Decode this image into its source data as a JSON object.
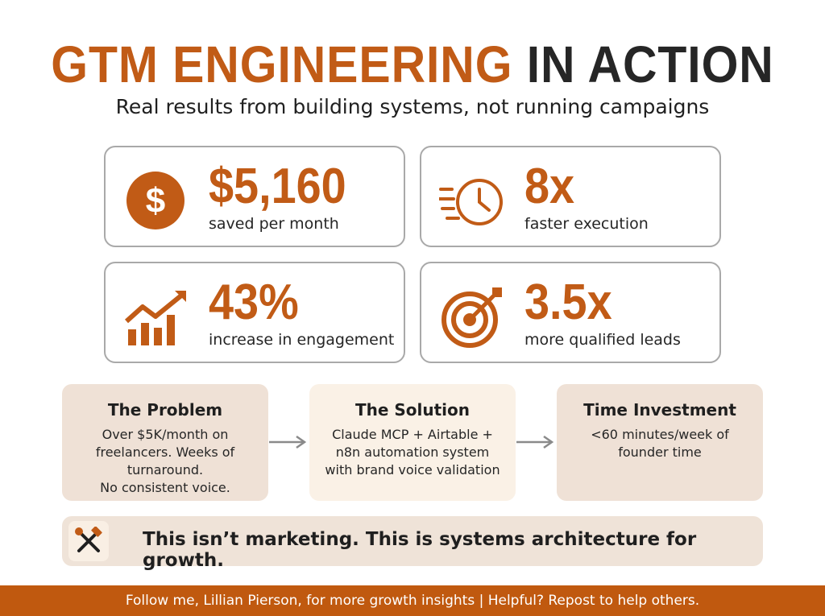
{
  "header": {
    "title_accent": "GTM ENGINEERING",
    "title_rest": "IN ACTION",
    "subtitle": "Real results from building systems, not running campaigns"
  },
  "colors": {
    "accent": "#c15b16",
    "dark_text": "#262626",
    "card_border": "#a9a9a9",
    "problem_bg": "#efe1d6",
    "solution_bg": "#faf1e6",
    "time_bg": "#efe1d6",
    "footer_bg": "#c0590f"
  },
  "metrics": [
    {
      "icon": "dollar-coin-icon",
      "value": "$5,160",
      "caption": "saved per month"
    },
    {
      "icon": "fast-clock-icon",
      "value": "8x",
      "caption": "faster execution"
    },
    {
      "icon": "growth-chart-icon",
      "value": "43%",
      "caption": "increase in engagement"
    },
    {
      "icon": "target-icon",
      "value": "3.5x",
      "caption": "more qualified leads"
    }
  ],
  "flow": [
    {
      "title": "The Problem",
      "text": "Over $5K/month on\nfreelancers. Weeks of\nturnaround.\nNo consistent voice."
    },
    {
      "title": "The Solution",
      "text": "Claude MCP + Airtable +\nn8n automation system\nwith brand voice validation"
    },
    {
      "title": "Time Investment",
      "text": "<60 minutes/week of\nfounder time"
    }
  ],
  "banner": {
    "icon": "tools-icon",
    "message": "This isn’t marketing. This is systems architecture for growth."
  },
  "footer": {
    "text": "Follow me, Lillian Pierson, for more growth insights | Helpful? Repost to help others."
  }
}
